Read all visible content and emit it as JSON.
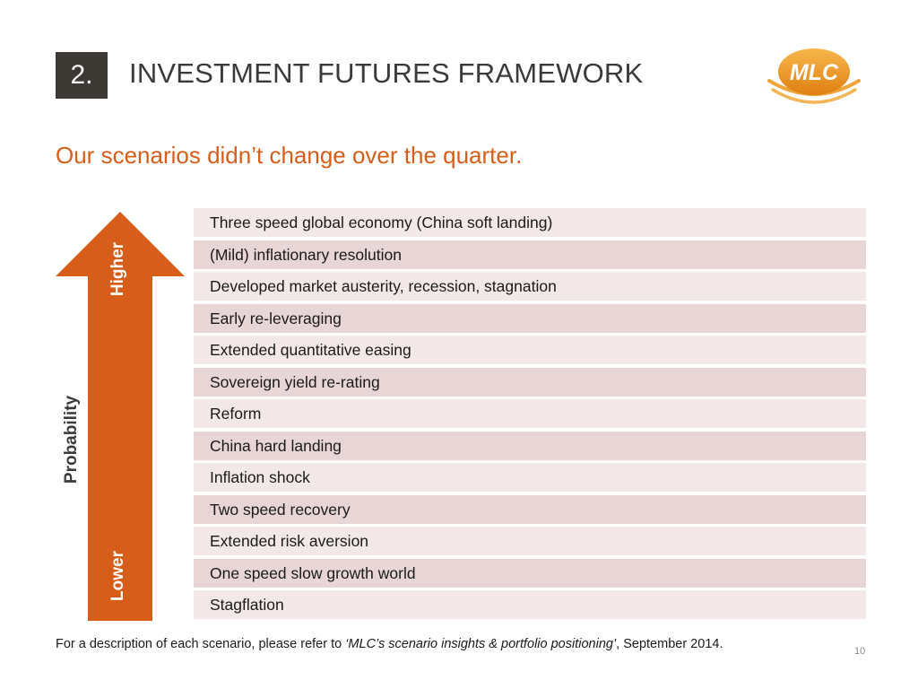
{
  "header": {
    "section_number": "2.",
    "title": "INVESTMENT FUTURES FRAMEWORK",
    "logo_text": "MLC"
  },
  "subtitle": "Our scenarios didn’t change over the quarter.",
  "probability_arrow": {
    "axis_label": "Probability",
    "top_label": "Higher",
    "bottom_label": "Lower"
  },
  "scenarios": [
    "Three speed global economy (China soft landing)",
    "(Mild) inflationary resolution",
    "Developed market austerity, recession, stagnation",
    "Early re-leveraging",
    "Extended quantitative easing",
    "Sovereign yield re-rating",
    "Reform",
    "China hard landing",
    "Inflation shock",
    "Two speed recovery",
    "Extended risk aversion",
    "One speed slow growth world",
    "Stagflation"
  ],
  "footnote": {
    "prefix": "For a description of each scenario, please refer to ",
    "reference": "‘MLC’s scenario insights & portfolio positioning’",
    "suffix": ", September 2014."
  },
  "page_number": "10",
  "colors": {
    "accent_orange": "#d65e1a",
    "logo_orange": "#e8901e",
    "row_light": "#f3e8e8",
    "row_dark": "#e8d5d5",
    "section_box": "#3c3935"
  }
}
